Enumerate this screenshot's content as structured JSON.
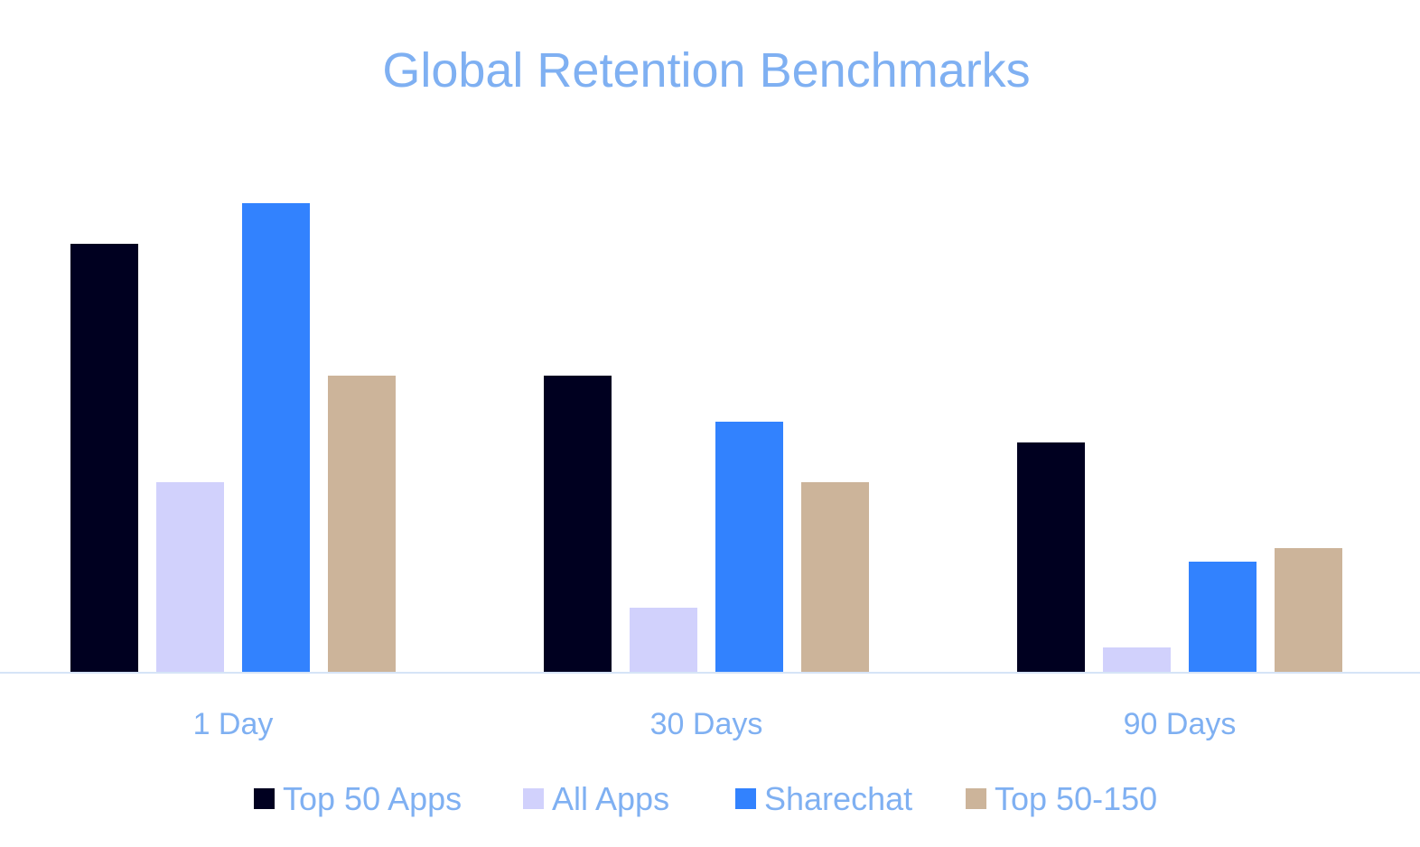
{
  "chart_data": {
    "type": "bar",
    "title": "Global Retention Benchmarks",
    "xlabel": "",
    "ylabel": "",
    "categories": [
      "1 Day",
      "30 Days",
      "90 Days"
    ],
    "series": [
      {
        "name": "Top 50 Apps",
        "color": "#000020",
        "values": [
          47.5,
          32.9,
          25.5
        ]
      },
      {
        "name": "All Apps",
        "color": "#d1d1fc",
        "values": [
          21.1,
          7.2,
          2.8
        ]
      },
      {
        "name": "Sharechat",
        "color": "#3282fe",
        "values": [
          52.0,
          27.8,
          12.3
        ]
      },
      {
        "name": "Top 50-150",
        "color": "#ccb49a",
        "values": [
          32.9,
          21.1,
          13.8
        ]
      }
    ],
    "ylim": [
      0,
      55
    ],
    "grid": false,
    "legend": "bottom",
    "note": "No y-axis values shown; values are relative estimates"
  }
}
